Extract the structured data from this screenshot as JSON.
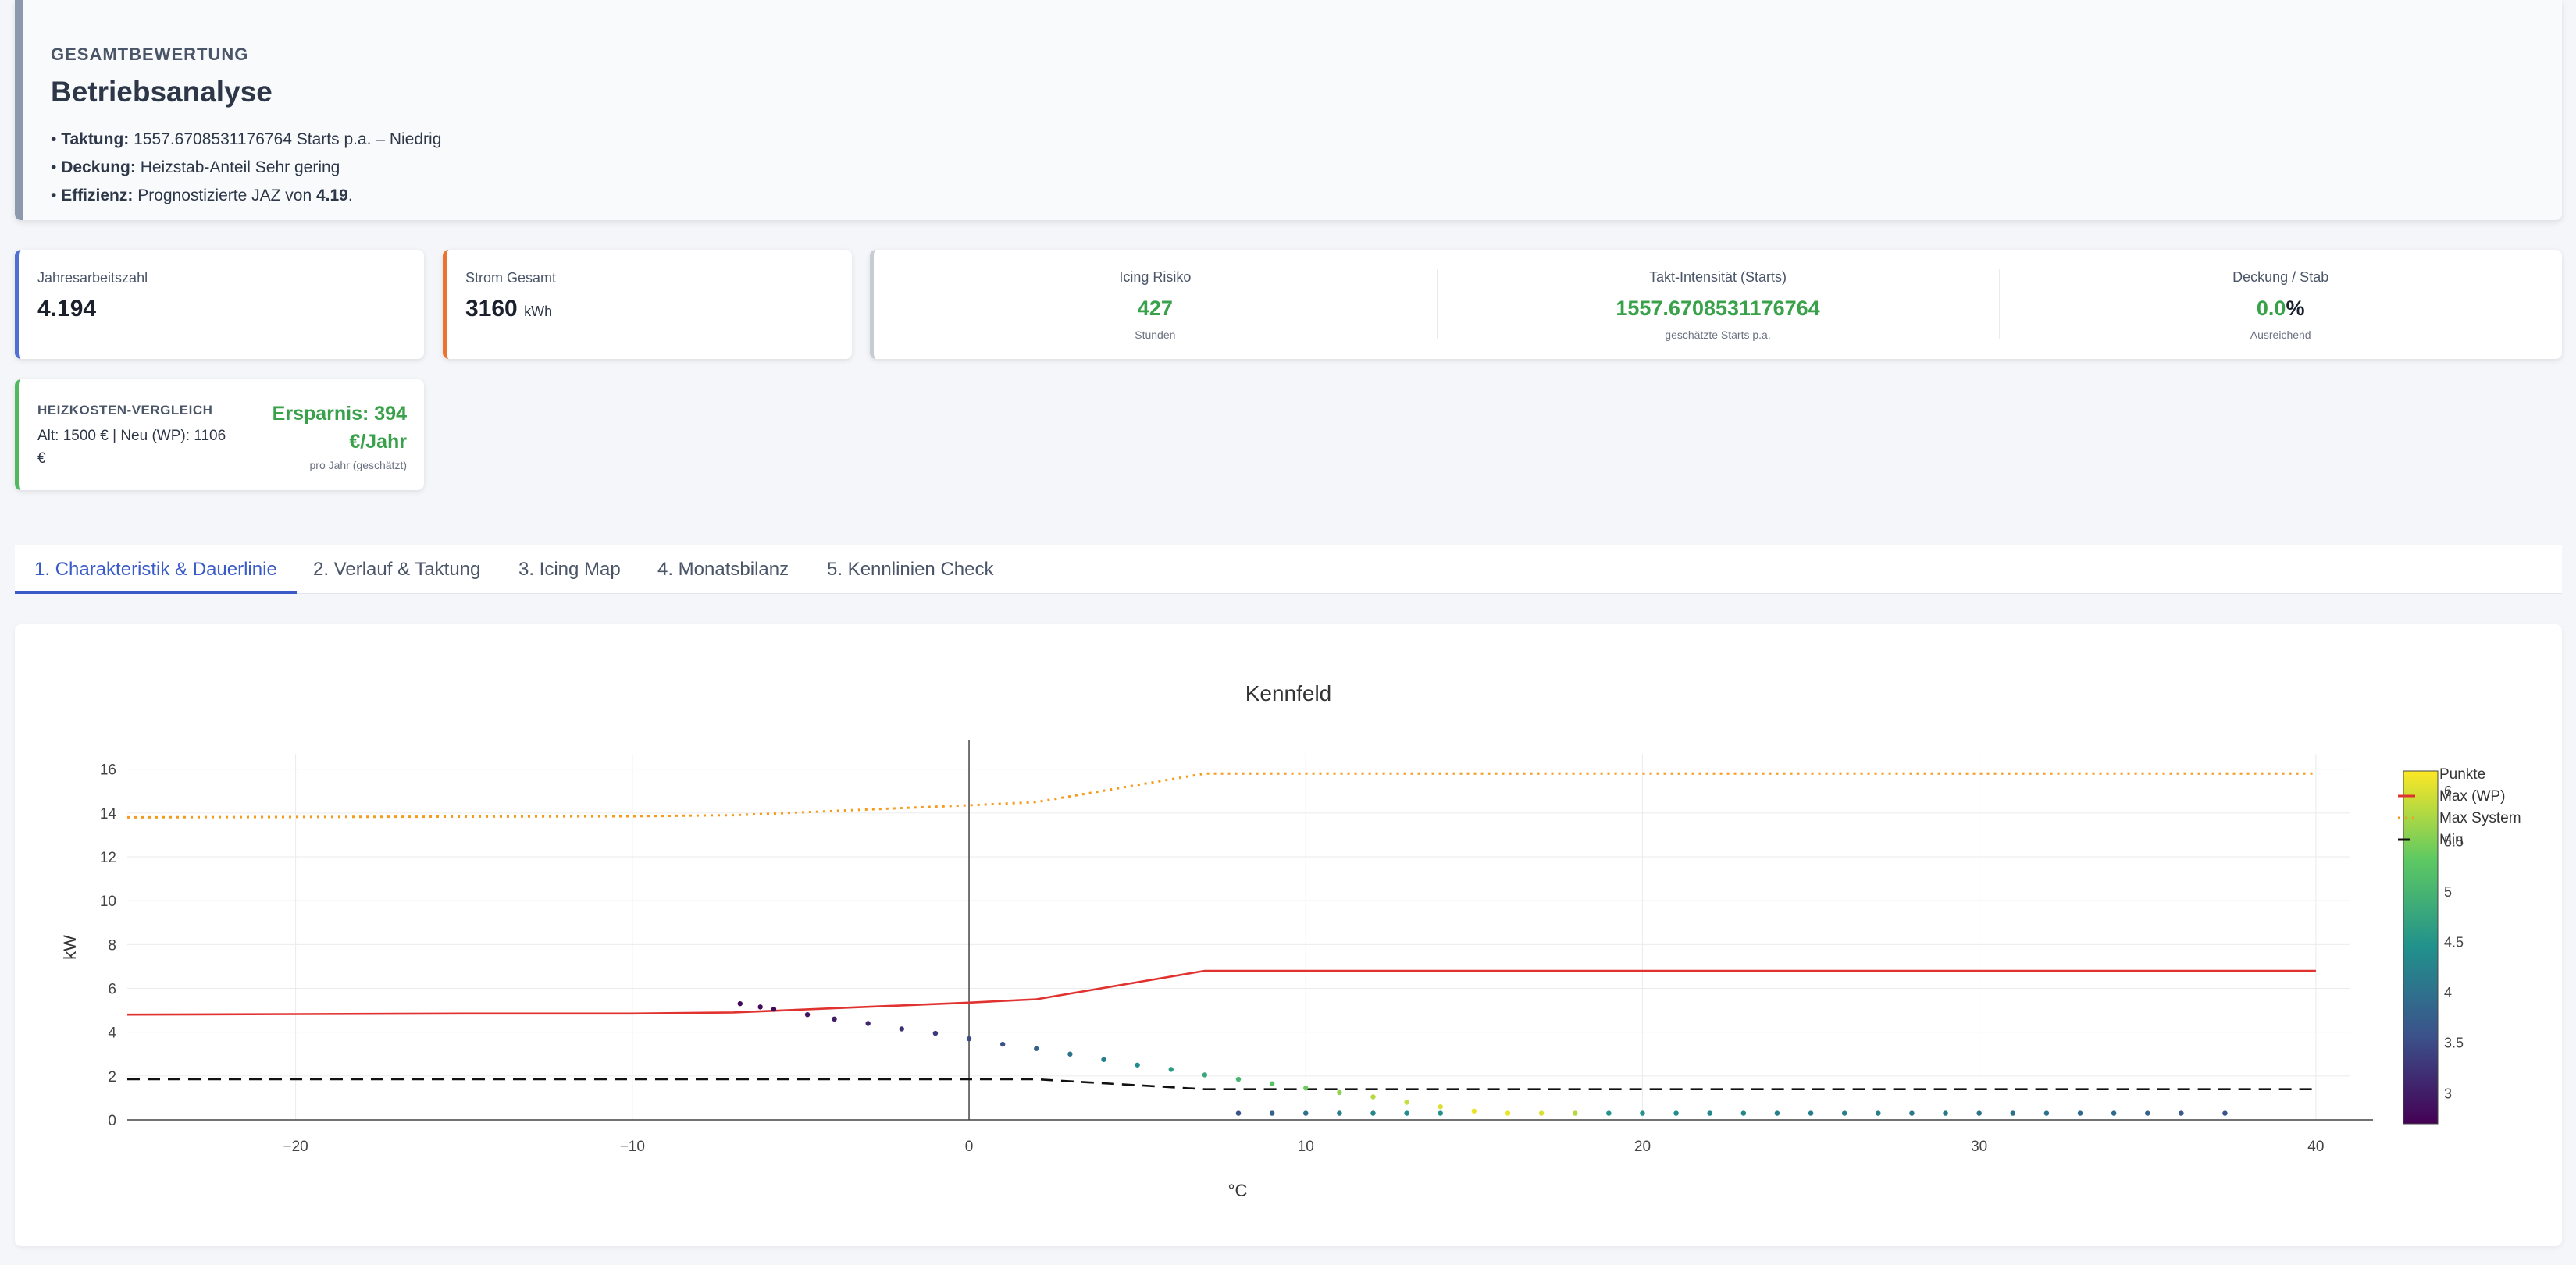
{
  "summary": {
    "kicker": "GESAMTBEWERTUNG",
    "title": "Betriebsanalyse",
    "items": [
      {
        "label": "Taktung:",
        "text": " 1557.6708531176764 Starts p.a. – Niedrig",
        "bold": "",
        "tail": ""
      },
      {
        "label": "Deckung:",
        "text": " Heizstab-Anteil Sehr gering",
        "bold": "",
        "tail": ""
      },
      {
        "label": "Effizienz:",
        "text": " Prognostizierte JAZ von ",
        "bold": "4.19",
        "tail": "."
      }
    ]
  },
  "kpis": {
    "jaz": {
      "label": "Jahresarbeitszahl",
      "value": "4.194"
    },
    "strom": {
      "label": "Strom Gesamt",
      "value": "3160",
      "unit": "kWh"
    },
    "icing": {
      "label": "Icing Risiko",
      "value": "427",
      "sub": "Stunden"
    },
    "takt": {
      "label": "Takt-Intensität (Starts)",
      "value": "1557.6708531176764",
      "sub": "geschätzte Starts p.a."
    },
    "deckung": {
      "label": "Deckung / Stab",
      "value": "0.0",
      "suffix": "%",
      "sub": "Ausreichend"
    }
  },
  "costs": {
    "title": "HEIZKOSTEN-VERGLEICH",
    "text": "Alt: 1500 € | Neu (WP): 1106 €",
    "savings_line1": "Ersparnis: 394",
    "savings_line2": "€/Jahr",
    "sub": "pro Jahr (geschätzt)"
  },
  "tabs": [
    {
      "label": "1. Charakteristik & Dauerlinie",
      "active": true
    },
    {
      "label": "2. Verlauf & Taktung",
      "active": false
    },
    {
      "label": "3. Icing Map",
      "active": false
    },
    {
      "label": "4. Monatsbilanz",
      "active": false
    },
    {
      "label": "5. Kennlinien Check",
      "active": false
    }
  ],
  "chart_data": {
    "type": "scatter",
    "title": "Kennfeld",
    "xlabel": "°C",
    "ylabel": "kW",
    "xlim": [
      -25,
      41
    ],
    "ylim": [
      0,
      16.7
    ],
    "x_ticks": [
      -20,
      -10,
      0,
      10,
      20,
      30,
      40
    ],
    "x_tick_labels": [
      "−20",
      "−10",
      "0",
      "10",
      "20",
      "30",
      "40"
    ],
    "y_ticks": [
      0,
      2,
      4,
      6,
      8,
      10,
      12,
      14,
      16
    ],
    "grid": true,
    "legend": "top-right",
    "colorscale": {
      "name": "viridis",
      "min": 2.7,
      "max": 6.2,
      "ticks": [
        3,
        3.5,
        4,
        4.5,
        5,
        5.5,
        6
      ],
      "colors": [
        "#440154",
        "#3b528b",
        "#21918c",
        "#5ec962",
        "#fde725"
      ]
    },
    "series": [
      {
        "name": "Max (WP)",
        "kind": "line",
        "color": "#e0322f",
        "dash": "solid",
        "x": [
          -25,
          -15,
          -10,
          -7,
          0,
          2,
          7,
          40
        ],
        "y": [
          4.8,
          4.85,
          4.85,
          4.9,
          5.35,
          5.5,
          6.8,
          6.8
        ]
      },
      {
        "name": "Max System",
        "kind": "line",
        "color": "#f59b1b",
        "dash": "dot",
        "x": [
          -25,
          -10,
          -7,
          0,
          2,
          7,
          40
        ],
        "y": [
          13.8,
          13.85,
          13.9,
          14.35,
          14.5,
          15.8,
          15.8
        ]
      },
      {
        "name": "Min",
        "kind": "line",
        "color": "#111111",
        "dash": "dash",
        "x": [
          -25,
          2,
          7,
          40
        ],
        "y": [
          1.85,
          1.85,
          1.4,
          1.4
        ]
      },
      {
        "name": "Punkte",
        "kind": "markers",
        "x": [
          -6.8,
          -6.2,
          -5.8,
          -4.8,
          -4,
          -3,
          -2,
          -1,
          0,
          1,
          2,
          3,
          4,
          5,
          6,
          7,
          8,
          9,
          10,
          11,
          12,
          13,
          14,
          15,
          16,
          17,
          18,
          8,
          9,
          10,
          11,
          12,
          13,
          14,
          19,
          20,
          21,
          22,
          23,
          24,
          25,
          26,
          27,
          28,
          29,
          30,
          31,
          32,
          33,
          34,
          35,
          36,
          37.3
        ],
        "y": [
          5.3,
          5.15,
          5.05,
          4.8,
          4.6,
          4.4,
          4.15,
          3.95,
          3.7,
          3.45,
          3.25,
          3.0,
          2.75,
          2.5,
          2.3,
          2.05,
          1.85,
          1.65,
          1.45,
          1.25,
          1.05,
          0.8,
          0.6,
          0.4,
          0.3,
          0.3,
          0.3,
          0.3,
          0.3,
          0.3,
          0.3,
          0.3,
          0.3,
          0.3,
          0.3,
          0.3,
          0.3,
          0.3,
          0.3,
          0.3,
          0.3,
          0.3,
          0.3,
          0.3,
          0.3,
          0.3,
          0.3,
          0.3,
          0.3,
          0.3,
          0.3,
          0.3,
          0.3
        ],
        "c": [
          2.8,
          2.8,
          2.8,
          2.9,
          3.0,
          3.1,
          3.2,
          3.3,
          3.5,
          3.6,
          3.8,
          4.0,
          4.2,
          4.4,
          4.6,
          4.8,
          5.0,
          5.2,
          5.4,
          5.6,
          5.8,
          5.9,
          6.0,
          6.1,
          6.1,
          6.0,
          5.8,
          3.6,
          3.8,
          4.0,
          4.2,
          4.3,
          4.4,
          4.5,
          4.5,
          4.5,
          4.4,
          4.3,
          4.3,
          4.2,
          4.2,
          4.2,
          4.2,
          4.1,
          4.1,
          4.0,
          4.0,
          4.0,
          3.9,
          3.9,
          3.8,
          3.7,
          3.6
        ]
      }
    ]
  }
}
